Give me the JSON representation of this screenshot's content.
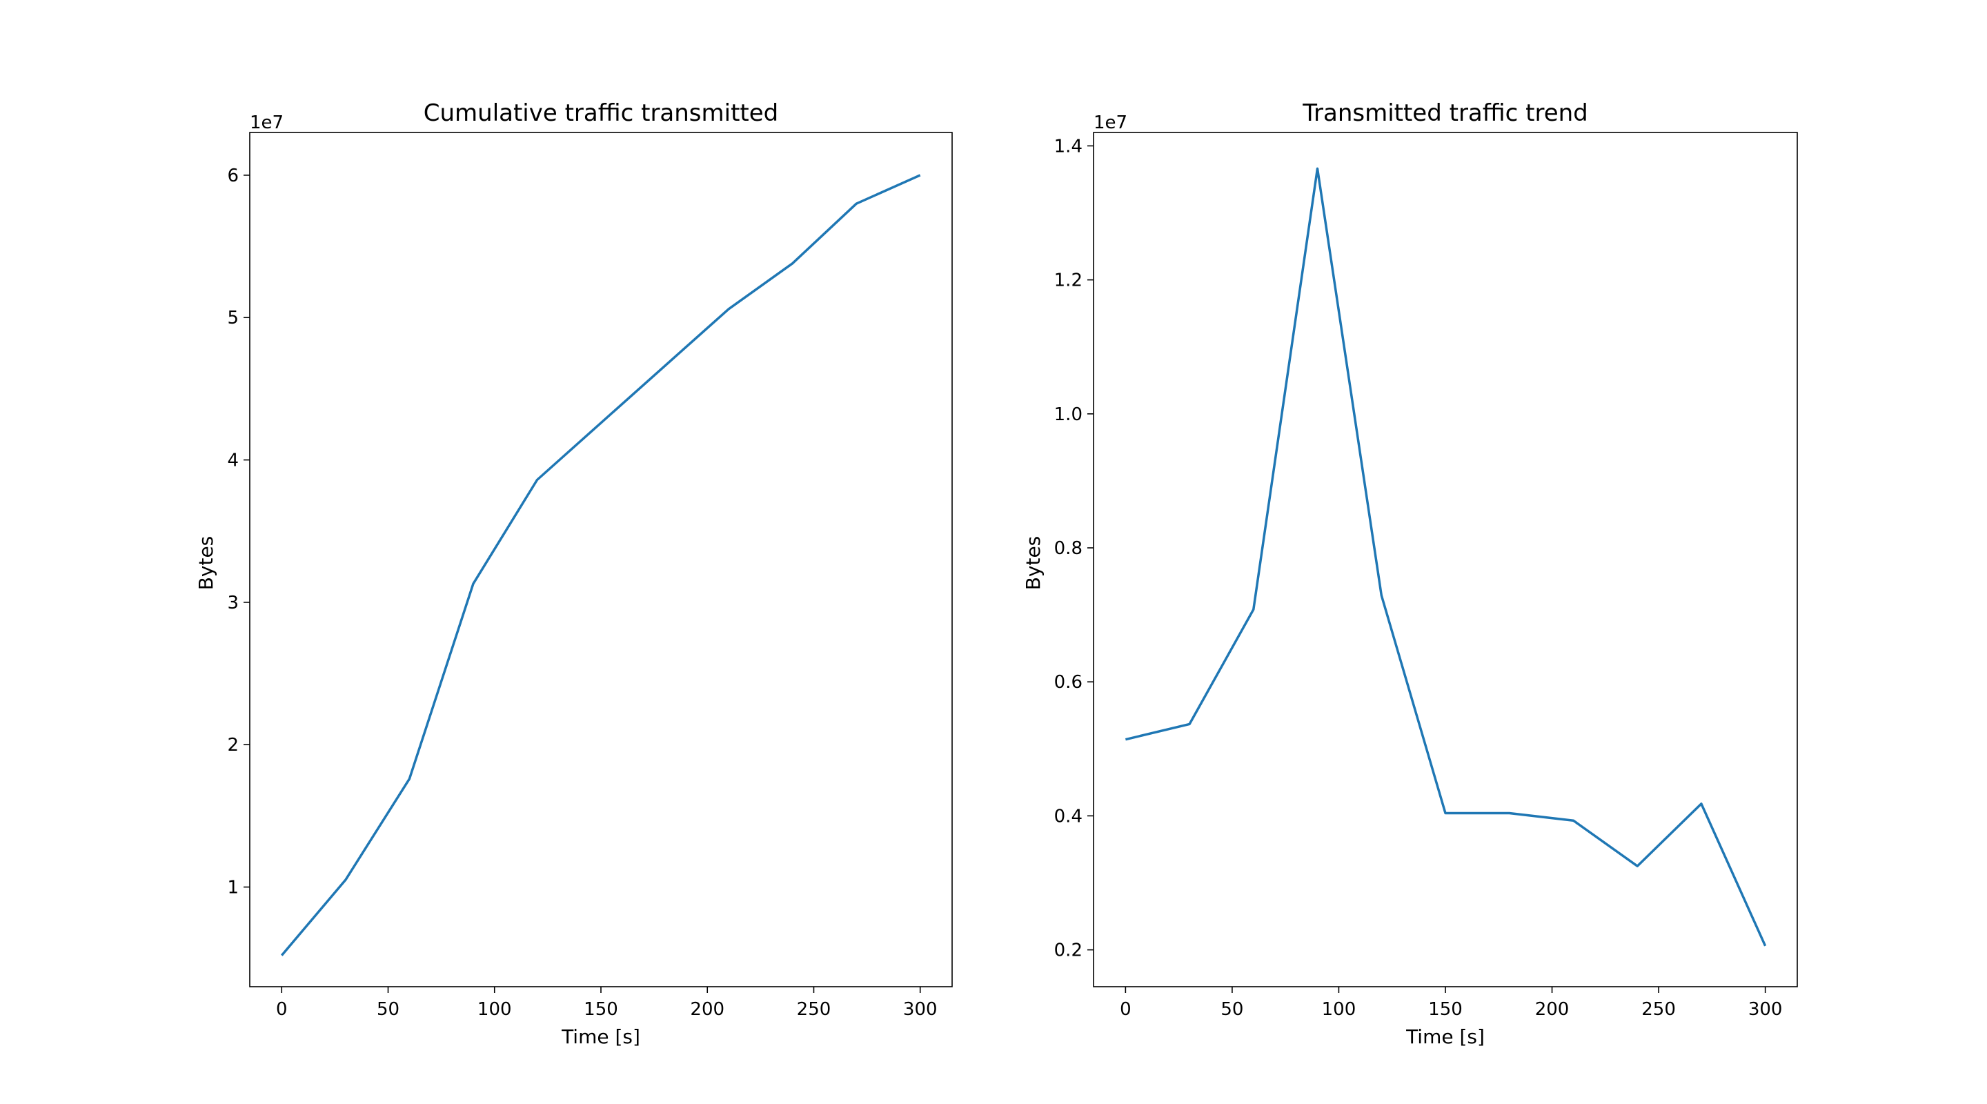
{
  "colors": {
    "series": "#1f77b4",
    "axis": "#000000",
    "background": "#ffffff"
  },
  "chart_data": [
    {
      "type": "line",
      "title": "Cumulative traffic transmitted",
      "xlabel": "Time [s]",
      "ylabel": "Bytes",
      "y_offset_label": "1e7",
      "xlim": [
        -15,
        315
      ],
      "ylim": [
        0.3,
        6.3
      ],
      "y_scale_factor": 10000000,
      "xticks": [
        0,
        50,
        100,
        150,
        200,
        250,
        300
      ],
      "xtick_labels": [
        "0",
        "50",
        "100",
        "150",
        "200",
        "250",
        "300"
      ],
      "yticks": [
        1,
        2,
        3,
        4,
        5,
        6
      ],
      "ytick_labels": [
        "1",
        "2",
        "3",
        "4",
        "5",
        "6"
      ],
      "grid": false,
      "series": [
        {
          "x": [
            0,
            30,
            60,
            90,
            120,
            150,
            180,
            210,
            240,
            270,
            300
          ],
          "y": [
            0.52,
            1.05,
            1.76,
            3.13,
            3.86,
            4.26,
            4.66,
            5.06,
            5.38,
            5.8,
            6.0
          ]
        }
      ]
    },
    {
      "type": "line",
      "title": "Transmitted traffic trend",
      "xlabel": "Time [s]",
      "ylabel": "Bytes",
      "y_offset_label": "1e7",
      "xlim": [
        -15,
        315
      ],
      "ylim": [
        0.145,
        1.42
      ],
      "y_scale_factor": 10000000,
      "xticks": [
        0,
        50,
        100,
        150,
        200,
        250,
        300
      ],
      "xtick_labels": [
        "0",
        "50",
        "100",
        "150",
        "200",
        "250",
        "300"
      ],
      "yticks": [
        0.2,
        0.4,
        0.6,
        0.8,
        1.0,
        1.2,
        1.4
      ],
      "ytick_labels": [
        "0.2",
        "0.4",
        "0.6",
        "0.8",
        "1.0",
        "1.2",
        "1.4"
      ],
      "grid": false,
      "series": [
        {
          "x": [
            0,
            30,
            60,
            90,
            120,
            150,
            180,
            210,
            240,
            270,
            300
          ],
          "y": [
            0.514,
            0.537,
            0.708,
            1.366,
            0.729,
            0.404,
            0.404,
            0.393,
            0.325,
            0.418,
            0.206
          ]
        }
      ]
    }
  ]
}
